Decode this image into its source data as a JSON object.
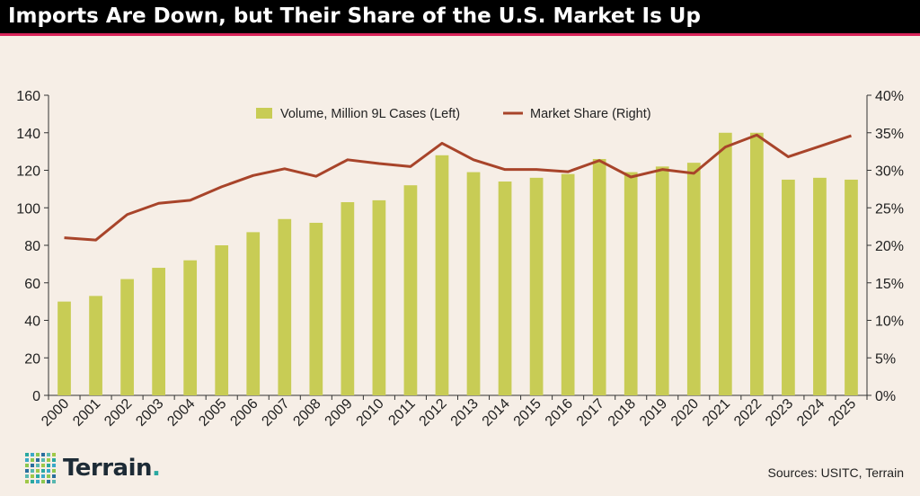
{
  "title": "Imports Are Down, but Their Share of the U.S. Market Is Up",
  "sources": "Sources: USITC, Terrain",
  "logo": {
    "text": "Terrain",
    "dot": "."
  },
  "colors": {
    "bar": "#c8cc55",
    "line": "#a8442a",
    "accent": "#d9245a",
    "background": "#f6eee6"
  },
  "chart_data": {
    "type": "bar+line",
    "categories": [
      "2000",
      "2001",
      "2002",
      "2003",
      "2004",
      "2005",
      "2006",
      "2007",
      "2008",
      "2009",
      "2010",
      "2011",
      "2012",
      "2013",
      "2014",
      "2015",
      "2016",
      "2017",
      "2018",
      "2019",
      "2020",
      "2021",
      "2022",
      "2023",
      "2024",
      "2025"
    ],
    "series": [
      {
        "name": "Volume, Million 9L Cases (Left)",
        "type": "bar",
        "axis": "left",
        "values": [
          50,
          53,
          62,
          68,
          72,
          80,
          87,
          94,
          92,
          103,
          104,
          112,
          128,
          119,
          114,
          116,
          118,
          126,
          119,
          122,
          124,
          140,
          140,
          115,
          116,
          115
        ]
      },
      {
        "name": "Market Share (Right)",
        "type": "line",
        "axis": "right",
        "values": [
          21.0,
          20.7,
          24.1,
          25.6,
          26.0,
          27.8,
          29.3,
          30.2,
          29.2,
          31.4,
          30.9,
          30.5,
          33.6,
          31.4,
          30.1,
          30.1,
          29.8,
          31.3,
          29.1,
          30.1,
          29.6,
          33.1,
          34.7,
          31.8,
          33.2,
          34.6
        ]
      }
    ],
    "y_left": {
      "ylim": [
        0,
        160
      ],
      "ticks": [
        "0",
        "20",
        "40",
        "60",
        "80",
        "100",
        "120",
        "140",
        "160"
      ]
    },
    "y_right": {
      "ylim": [
        0,
        40
      ],
      "ticks": [
        "0%",
        "5%",
        "10%",
        "15%",
        "20%",
        "25%",
        "30%",
        "35%",
        "40%"
      ]
    },
    "legend_placement": "top-center",
    "grid": false
  }
}
